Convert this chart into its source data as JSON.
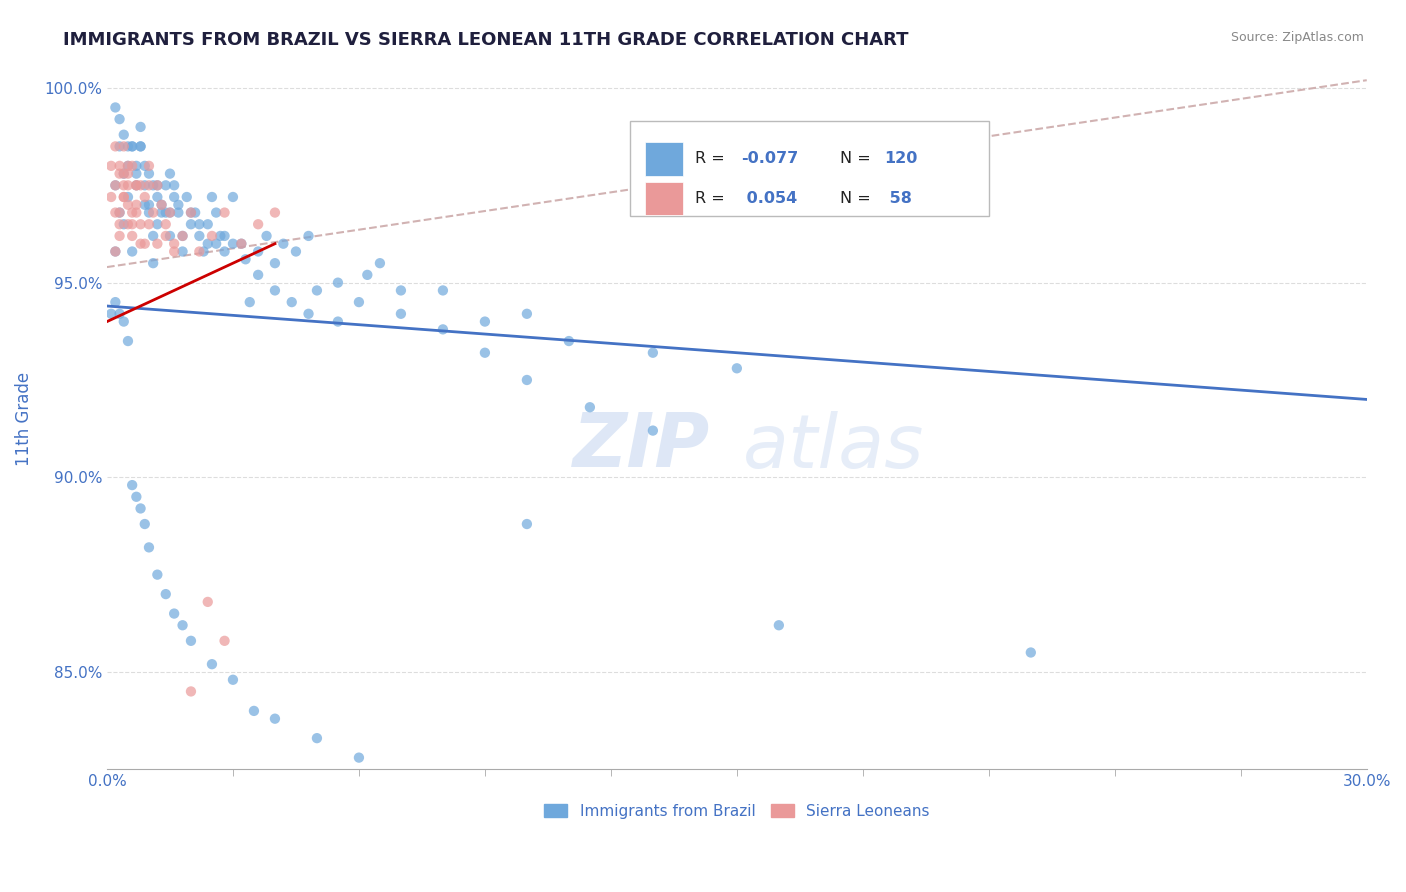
{
  "title": "IMMIGRANTS FROM BRAZIL VS SIERRA LEONEAN 11TH GRADE CORRELATION CHART",
  "source_text": "Source: ZipAtlas.com",
  "ylabel": "11th Grade",
  "xlim": [
    0.0,
    0.3
  ],
  "ylim": [
    0.825,
    1.005
  ],
  "xtick_labels": [
    "0.0%",
    "30.0%"
  ],
  "yticks": [
    0.85,
    0.9,
    0.95,
    1.0
  ],
  "ytick_labels": [
    "85.0%",
    "90.0%",
    "95.0%",
    "100.0%"
  ],
  "blue_color": "#6fa8dc",
  "pink_color": "#ea9999",
  "trend_blue_color": "#4472c4",
  "trend_pink_color": "#cc0000",
  "trend_dashed_color": "#ccaaaa",
  "watermark_color": "#c8d8f0",
  "axis_label_color": "#4472c4",
  "brazil_x": [
    0.001,
    0.002,
    0.002,
    0.003,
    0.003,
    0.004,
    0.004,
    0.005,
    0.005,
    0.006,
    0.006,
    0.007,
    0.007,
    0.008,
    0.008,
    0.009,
    0.009,
    0.01,
    0.01,
    0.011,
    0.011,
    0.012,
    0.012,
    0.013,
    0.014,
    0.015,
    0.015,
    0.016,
    0.017,
    0.018,
    0.019,
    0.02,
    0.021,
    0.022,
    0.023,
    0.024,
    0.025,
    0.026,
    0.027,
    0.028,
    0.03,
    0.032,
    0.034,
    0.036,
    0.038,
    0.04,
    0.042,
    0.045,
    0.048,
    0.05,
    0.055,
    0.06,
    0.065,
    0.07,
    0.08,
    0.09,
    0.1,
    0.11,
    0.13,
    0.15,
    0.002,
    0.003,
    0.004,
    0.005,
    0.006,
    0.007,
    0.008,
    0.009,
    0.01,
    0.011,
    0.012,
    0.013,
    0.014,
    0.015,
    0.016,
    0.017,
    0.018,
    0.02,
    0.022,
    0.024,
    0.026,
    0.028,
    0.03,
    0.033,
    0.036,
    0.04,
    0.044,
    0.048,
    0.055,
    0.062,
    0.07,
    0.08,
    0.09,
    0.1,
    0.115,
    0.13,
    0.002,
    0.003,
    0.004,
    0.005,
    0.006,
    0.007,
    0.008,
    0.009,
    0.01,
    0.012,
    0.014,
    0.016,
    0.018,
    0.02,
    0.025,
    0.03,
    0.035,
    0.04,
    0.05,
    0.06,
    0.08,
    0.1,
    0.16,
    0.22
  ],
  "brazil_y": [
    0.942,
    0.958,
    0.975,
    0.968,
    0.985,
    0.965,
    0.978,
    0.98,
    0.972,
    0.985,
    0.958,
    0.98,
    0.975,
    0.99,
    0.985,
    0.975,
    0.97,
    0.968,
    0.978,
    0.962,
    0.955,
    0.975,
    0.965,
    0.97,
    0.968,
    0.962,
    0.978,
    0.972,
    0.968,
    0.958,
    0.972,
    0.965,
    0.968,
    0.962,
    0.958,
    0.965,
    0.972,
    0.968,
    0.962,
    0.958,
    0.972,
    0.96,
    0.945,
    0.958,
    0.962,
    0.955,
    0.96,
    0.958,
    0.962,
    0.948,
    0.95,
    0.945,
    0.955,
    0.948,
    0.948,
    0.94,
    0.942,
    0.935,
    0.932,
    0.928,
    0.995,
    0.992,
    0.988,
    0.985,
    0.985,
    0.978,
    0.985,
    0.98,
    0.97,
    0.975,
    0.972,
    0.968,
    0.975,
    0.968,
    0.975,
    0.97,
    0.962,
    0.968,
    0.965,
    0.96,
    0.96,
    0.962,
    0.96,
    0.956,
    0.952,
    0.948,
    0.945,
    0.942,
    0.94,
    0.952,
    0.942,
    0.938,
    0.932,
    0.925,
    0.918,
    0.912,
    0.945,
    0.942,
    0.94,
    0.935,
    0.898,
    0.895,
    0.892,
    0.888,
    0.882,
    0.875,
    0.87,
    0.865,
    0.862,
    0.858,
    0.852,
    0.848,
    0.84,
    0.838,
    0.833,
    0.828,
    0.822,
    0.888,
    0.862,
    0.855
  ],
  "sierra_x": [
    0.001,
    0.001,
    0.002,
    0.002,
    0.002,
    0.003,
    0.003,
    0.003,
    0.004,
    0.004,
    0.004,
    0.005,
    0.005,
    0.005,
    0.006,
    0.006,
    0.007,
    0.007,
    0.008,
    0.009,
    0.01,
    0.01,
    0.011,
    0.012,
    0.013,
    0.014,
    0.015,
    0.016,
    0.018,
    0.02,
    0.022,
    0.025,
    0.028,
    0.032,
    0.036,
    0.04,
    0.002,
    0.003,
    0.004,
    0.005,
    0.006,
    0.007,
    0.008,
    0.009,
    0.01,
    0.012,
    0.014,
    0.016,
    0.02,
    0.024,
    0.028,
    0.003,
    0.004,
    0.005,
    0.006,
    0.007,
    0.008
  ],
  "sierra_y": [
    0.972,
    0.98,
    0.968,
    0.975,
    0.985,
    0.978,
    0.965,
    0.98,
    0.972,
    0.978,
    0.985,
    0.97,
    0.965,
    0.975,
    0.98,
    0.968,
    0.97,
    0.975,
    0.965,
    0.96,
    0.965,
    0.975,
    0.968,
    0.96,
    0.97,
    0.965,
    0.968,
    0.96,
    0.962,
    0.968,
    0.958,
    0.962,
    0.968,
    0.96,
    0.965,
    0.968,
    0.958,
    0.968,
    0.972,
    0.98,
    0.965,
    0.975,
    0.96,
    0.972,
    0.98,
    0.975,
    0.962,
    0.958,
    0.845,
    0.868,
    0.858,
    0.962,
    0.975,
    0.978,
    0.962,
    0.968,
    0.975
  ],
  "blue_trend_x0": 0.0,
  "blue_trend_y0": 0.944,
  "blue_trend_x1": 0.3,
  "blue_trend_y1": 0.92,
  "pink_trend_x0": 0.0,
  "pink_trend_y0": 0.94,
  "pink_trend_x1": 0.04,
  "pink_trend_y1": 0.96,
  "dashed_trend_x0": 0.0,
  "dashed_trend_y0": 0.954,
  "dashed_trend_x1": 0.3,
  "dashed_trend_y1": 1.002
}
